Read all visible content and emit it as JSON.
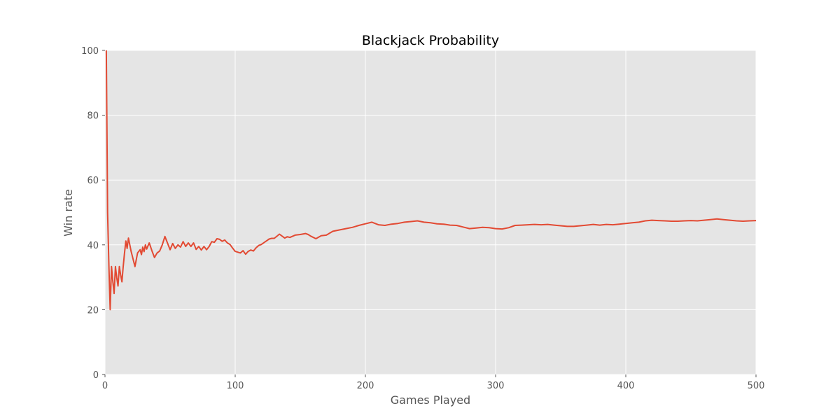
{
  "chart_data": {
    "type": "line",
    "title": "Blackjack Probability",
    "xlabel": "Games Played",
    "ylabel": "Win rate",
    "xlim": [
      0,
      500
    ],
    "ylim": [
      0,
      100
    ],
    "xticks": [
      0,
      100,
      200,
      300,
      400,
      500
    ],
    "yticks": [
      0,
      20,
      40,
      60,
      80,
      100
    ],
    "grid": true,
    "background": "#e5e5e5",
    "series": [
      {
        "name": "Win rate",
        "color": "#e24a33",
        "x": [
          1,
          2,
          3,
          4,
          5,
          6,
          7,
          8,
          9,
          10,
          11,
          12,
          13,
          14,
          15,
          16,
          17,
          18,
          20,
          23,
          25,
          27,
          28,
          29,
          30,
          31,
          32,
          34,
          36,
          38,
          40,
          42,
          44,
          46,
          50,
          52,
          54,
          56,
          58,
          60,
          62,
          64,
          66,
          68,
          70,
          72,
          74,
          76,
          78,
          80,
          82,
          84,
          86,
          88,
          90,
          92,
          94,
          96,
          98,
          100,
          104,
          106,
          108,
          110,
          112,
          114,
          116,
          118,
          120,
          124,
          126,
          128,
          130,
          134,
          138,
          140,
          142,
          146,
          150,
          154,
          156,
          158,
          162,
          166,
          170,
          175,
          180,
          185,
          190,
          195,
          200,
          205,
          210,
          215,
          220,
          225,
          230,
          235,
          240,
          245,
          250,
          255,
          260,
          265,
          270,
          275,
          280,
          285,
          290,
          295,
          300,
          305,
          310,
          315,
          320,
          325,
          330,
          335,
          340,
          345,
          350,
          355,
          360,
          365,
          370,
          375,
          380,
          385,
          390,
          395,
          400,
          405,
          410,
          415,
          420,
          425,
          430,
          435,
          440,
          445,
          450,
          455,
          460,
          465,
          470,
          475,
          480,
          485,
          490,
          495,
          500
        ],
        "y": [
          100,
          50,
          33.3,
          20,
          33.3,
          28.6,
          25,
          33.3,
          30,
          27.3,
          33.3,
          30.8,
          28.6,
          33.3,
          37.5,
          41.2,
          38.9,
          42.1,
          38.1,
          33.3,
          37.5,
          38.5,
          37,
          39.3,
          37.9,
          40,
          38.7,
          40.6,
          38.2,
          36.1,
          37.5,
          38.1,
          40,
          42.6,
          38.5,
          40.4,
          38.9,
          40,
          39.3,
          41,
          39.5,
          40.6,
          39.5,
          40.6,
          38.6,
          39.5,
          38.4,
          39.5,
          38.5,
          39.5,
          41,
          40.8,
          41.9,
          41.7,
          41.1,
          41.5,
          40.6,
          40.1,
          39,
          38,
          37.5,
          38.2,
          37.1,
          38,
          38.4,
          38.1,
          39.1,
          39.8,
          40.1,
          41.2,
          41.8,
          42,
          42,
          43.3,
          42.1,
          42.5,
          42.3,
          43,
          43.2,
          43.5,
          43.2,
          42.7,
          41.9,
          42.8,
          43,
          44.2,
          44.6,
          45,
          45.4,
          46,
          46.5,
          47,
          46.2,
          46,
          46.4,
          46.6,
          47,
          47.2,
          47.4,
          47,
          46.8,
          46.5,
          46.4,
          46.1,
          46,
          45.5,
          45,
          45.2,
          45.4,
          45.3,
          45,
          44.9,
          45.3,
          46,
          46.1,
          46.2,
          46.3,
          46.2,
          46.3,
          46.1,
          45.9,
          45.7,
          45.7,
          45.9,
          46.1,
          46.3,
          46.1,
          46.3,
          46.2,
          46.4,
          46.6,
          46.8,
          47,
          47.4,
          47.6,
          47.5,
          47.4,
          47.3,
          47.3,
          47.4,
          47.5,
          47.4,
          47.6,
          47.8,
          48,
          47.8,
          47.6,
          47.4,
          47.3,
          47.4,
          47.5
        ]
      }
    ]
  }
}
